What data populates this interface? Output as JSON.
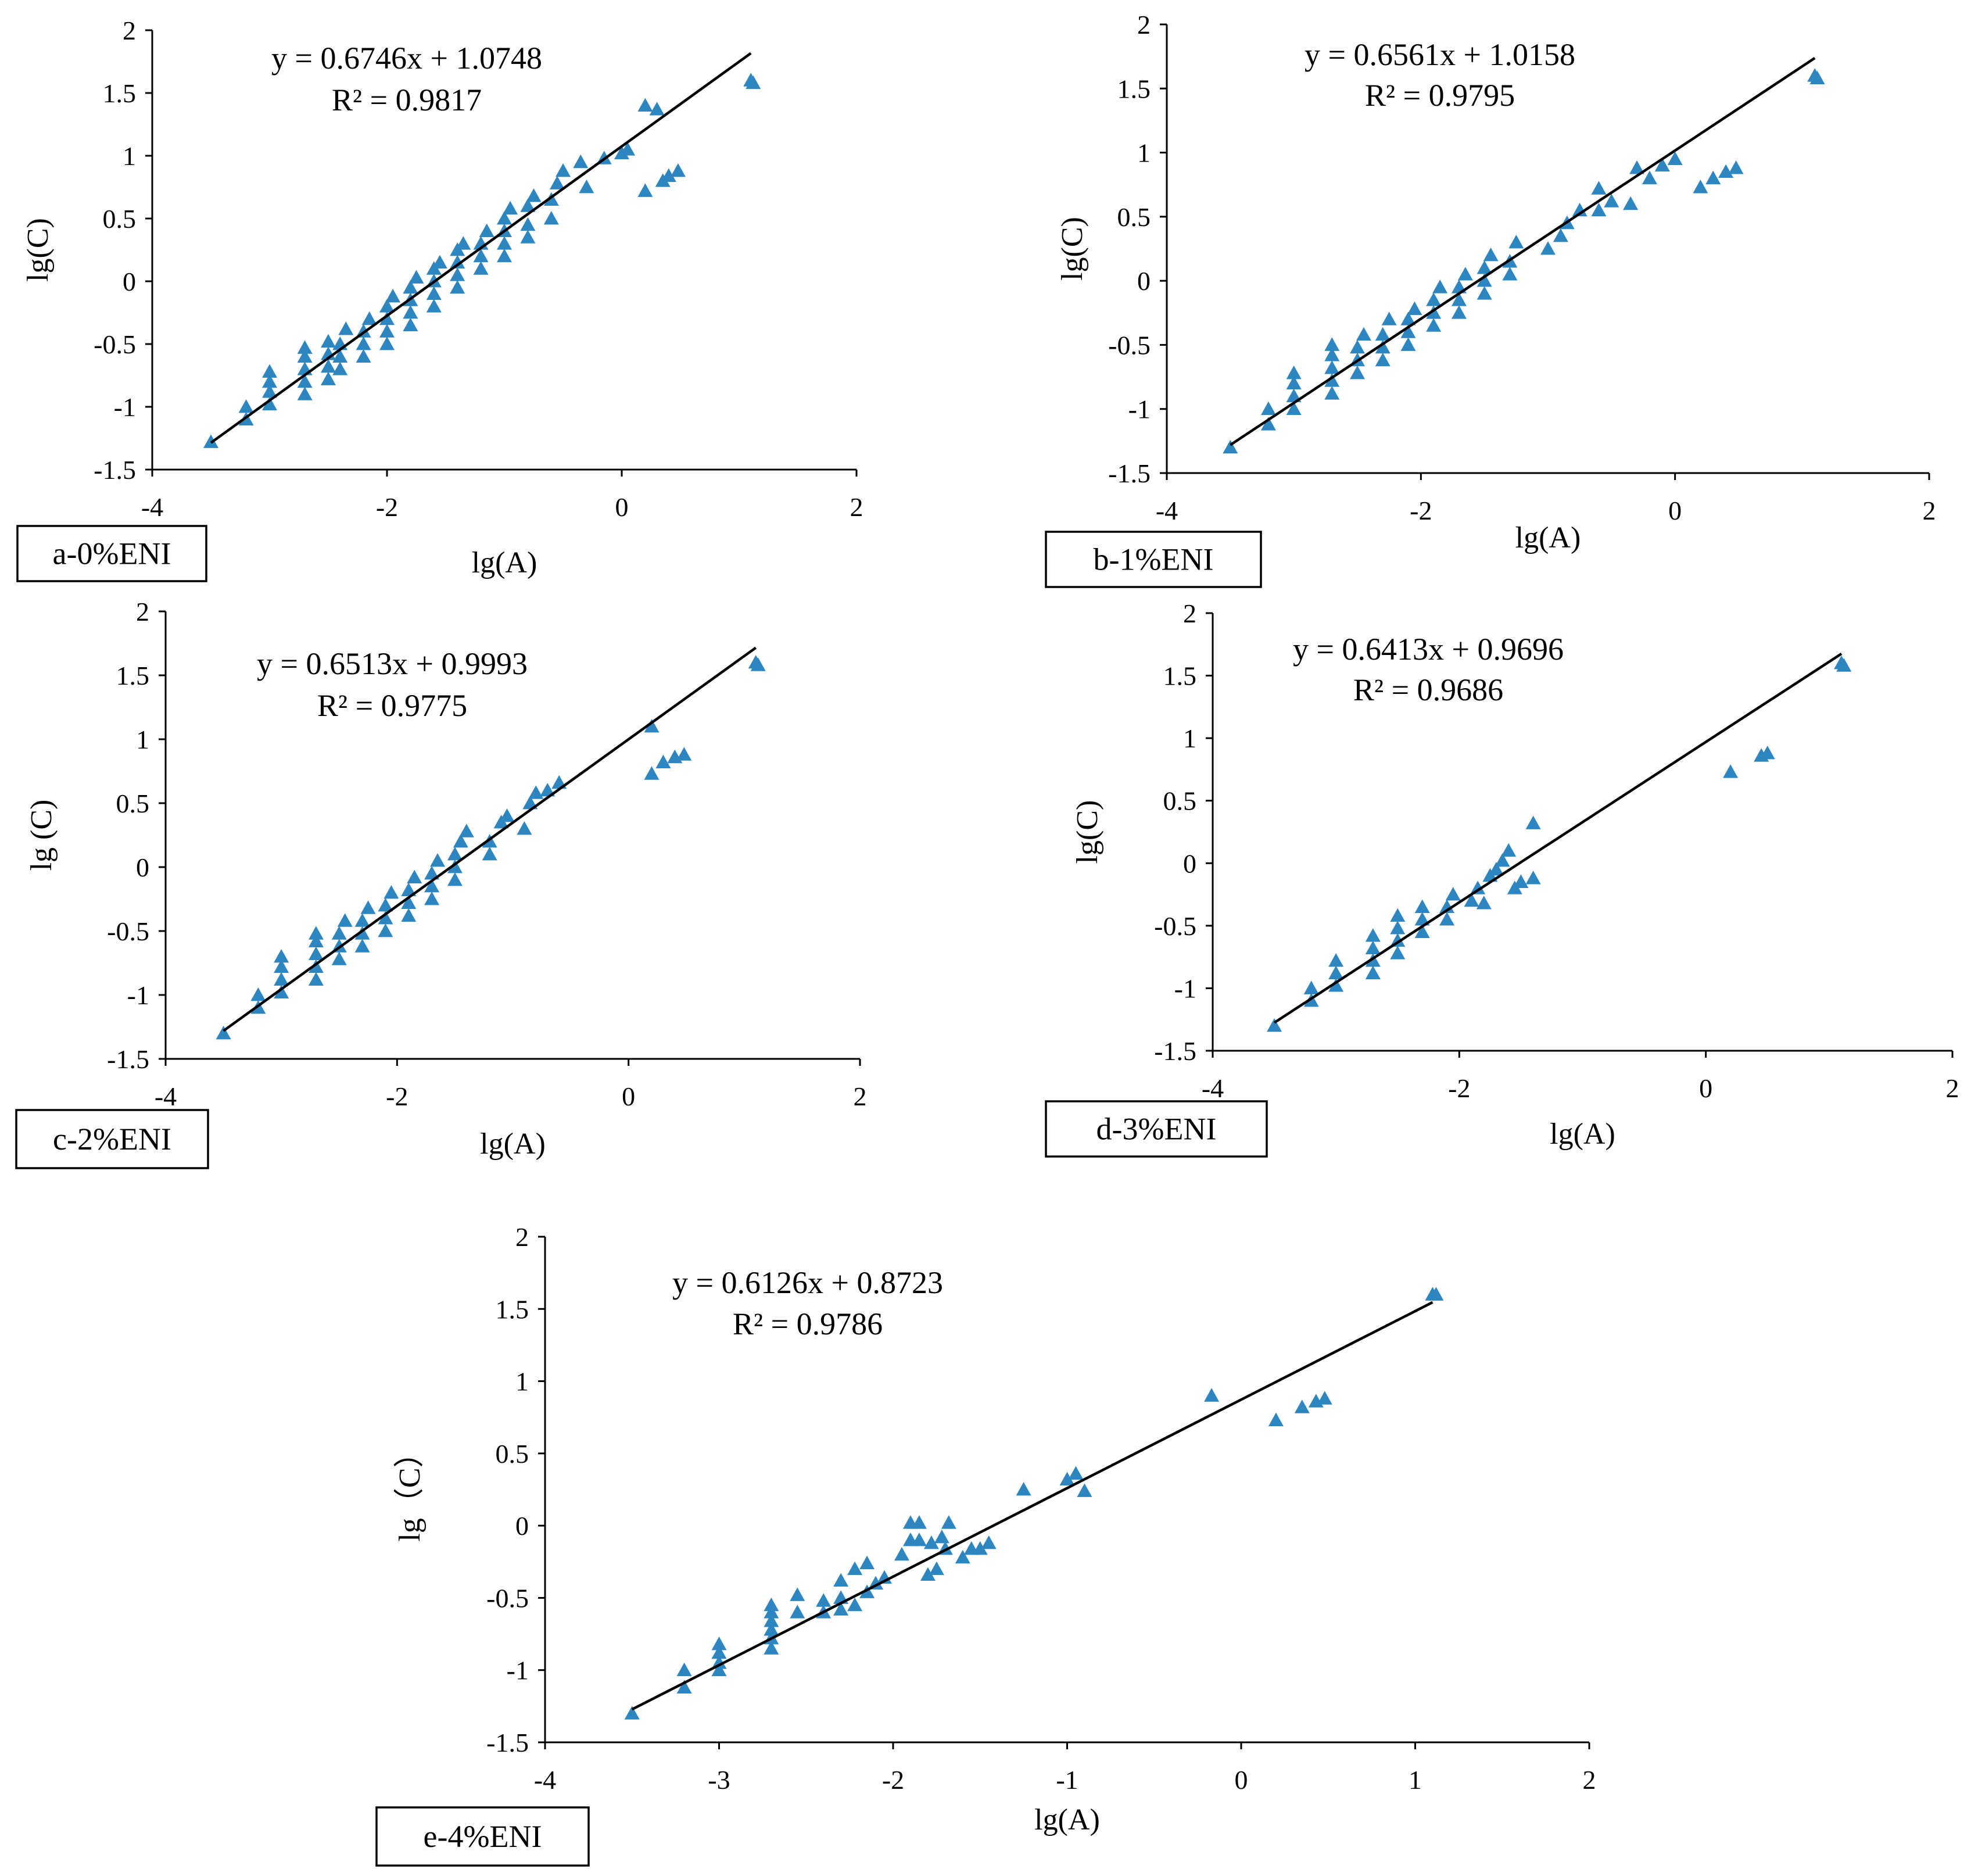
{
  "colors": {
    "marker": "#2E86C1",
    "line": "#000000",
    "axis": "#000000"
  },
  "chart_data": [
    {
      "type": "scatter",
      "panel_label": "a-0%ENI",
      "equation": "y = 0.6746x + 1.0748",
      "r_squared": "R² = 0.9817",
      "slope": 0.6746,
      "intercept": 1.0748,
      "fit_range": [
        -3.5,
        1.1
      ],
      "xlabel": "lg(A)",
      "ylabel": "lg(C)",
      "xlim": [
        -4,
        2
      ],
      "ylim": [
        -1.5,
        2
      ],
      "xticks": [
        "-4",
        "-2",
        "0",
        "2"
      ],
      "yticks": [
        "-1.5",
        "-1",
        "-0.5",
        "0",
        "0.5",
        "1",
        "1.5",
        "2"
      ],
      "marker": "triangle",
      "points": [
        [
          -3.5,
          -1.28
        ],
        [
          -3.2,
          -1.1
        ],
        [
          -3.2,
          -1.0
        ],
        [
          -3.0,
          -0.98
        ],
        [
          -3.0,
          -0.88
        ],
        [
          -3.0,
          -0.8
        ],
        [
          -3.0,
          -0.72
        ],
        [
          -2.7,
          -0.9
        ],
        [
          -2.7,
          -0.8
        ],
        [
          -2.7,
          -0.7
        ],
        [
          -2.7,
          -0.6
        ],
        [
          -2.7,
          -0.53
        ],
        [
          -2.5,
          -0.78
        ],
        [
          -2.5,
          -0.68
        ],
        [
          -2.5,
          -0.58
        ],
        [
          -2.5,
          -0.48
        ],
        [
          -2.4,
          -0.7
        ],
        [
          -2.4,
          -0.6
        ],
        [
          -2.4,
          -0.5
        ],
        [
          -2.35,
          -0.38
        ],
        [
          -2.2,
          -0.6
        ],
        [
          -2.2,
          -0.5
        ],
        [
          -2.2,
          -0.4
        ],
        [
          -2.15,
          -0.3
        ],
        [
          -2.0,
          -0.5
        ],
        [
          -2.0,
          -0.4
        ],
        [
          -2.0,
          -0.3
        ],
        [
          -2.0,
          -0.2
        ],
        [
          -1.95,
          -0.12
        ],
        [
          -1.8,
          -0.35
        ],
        [
          -1.8,
          -0.25
        ],
        [
          -1.8,
          -0.15
        ],
        [
          -1.8,
          -0.05
        ],
        [
          -1.75,
          0.03
        ],
        [
          -1.6,
          -0.2
        ],
        [
          -1.6,
          -0.1
        ],
        [
          -1.6,
          0.0
        ],
        [
          -1.6,
          0.1
        ],
        [
          -1.55,
          0.15
        ],
        [
          -1.4,
          -0.05
        ],
        [
          -1.4,
          0.05
        ],
        [
          -1.4,
          0.15
        ],
        [
          -1.4,
          0.25
        ],
        [
          -1.35,
          0.3
        ],
        [
          -1.2,
          0.1
        ],
        [
          -1.2,
          0.2
        ],
        [
          -1.2,
          0.3
        ],
        [
          -1.15,
          0.4
        ],
        [
          -1.0,
          0.2
        ],
        [
          -1.0,
          0.3
        ],
        [
          -1.0,
          0.4
        ],
        [
          -1.0,
          0.5
        ],
        [
          -0.95,
          0.58
        ],
        [
          -0.8,
          0.35
        ],
        [
          -0.8,
          0.45
        ],
        [
          -0.8,
          0.6
        ],
        [
          -0.75,
          0.68
        ],
        [
          -0.6,
          0.5
        ],
        [
          -0.6,
          0.65
        ],
        [
          -0.55,
          0.78
        ],
        [
          -0.5,
          0.88
        ],
        [
          -0.35,
          0.95
        ],
        [
          -0.3,
          0.75
        ],
        [
          -0.15,
          0.98
        ],
        [
          0.0,
          1.02
        ],
        [
          0.05,
          1.05
        ],
        [
          0.2,
          0.72
        ],
        [
          0.35,
          0.8
        ],
        [
          0.4,
          0.84
        ],
        [
          0.48,
          0.88
        ],
        [
          0.2,
          1.4
        ],
        [
          0.3,
          1.37
        ],
        [
          1.1,
          1.6
        ],
        [
          1.12,
          1.58
        ]
      ]
    },
    {
      "type": "scatter",
      "panel_label": "b-1%ENI",
      "equation": "y = 0.6561x + 1.0158",
      "r_squared": "R² = 0.9795",
      "slope": 0.6561,
      "intercept": 1.0158,
      "fit_range": [
        -3.5,
        1.1
      ],
      "xlabel": "lg(A)",
      "ylabel": "lg(C)",
      "xlim": [
        -4,
        2
      ],
      "ylim": [
        -1.5,
        2
      ],
      "xticks": [
        "-4",
        "-2",
        "0",
        "2"
      ],
      "yticks": [
        "-1.5",
        "-1",
        "-0.5",
        "0",
        "0.5",
        "1",
        "1.5",
        "2"
      ],
      "marker": "triangle",
      "points": [
        [
          -3.5,
          -1.3
        ],
        [
          -3.2,
          -1.12
        ],
        [
          -3.2,
          -1.0
        ],
        [
          -3.0,
          -1.0
        ],
        [
          -3.0,
          -0.9
        ],
        [
          -3.0,
          -0.8
        ],
        [
          -3.0,
          -0.72
        ],
        [
          -2.7,
          -0.88
        ],
        [
          -2.7,
          -0.78
        ],
        [
          -2.7,
          -0.68
        ],
        [
          -2.7,
          -0.58
        ],
        [
          -2.7,
          -0.5
        ],
        [
          -2.5,
          -0.72
        ],
        [
          -2.5,
          -0.62
        ],
        [
          -2.5,
          -0.52
        ],
        [
          -2.45,
          -0.42
        ],
        [
          -2.3,
          -0.62
        ],
        [
          -2.3,
          -0.52
        ],
        [
          -2.3,
          -0.42
        ],
        [
          -2.25,
          -0.3
        ],
        [
          -2.1,
          -0.5
        ],
        [
          -2.1,
          -0.4
        ],
        [
          -2.1,
          -0.3
        ],
        [
          -2.05,
          -0.22
        ],
        [
          -1.9,
          -0.35
        ],
        [
          -1.9,
          -0.25
        ],
        [
          -1.9,
          -0.15
        ],
        [
          -1.85,
          -0.05
        ],
        [
          -1.7,
          -0.25
        ],
        [
          -1.7,
          -0.15
        ],
        [
          -1.7,
          -0.05
        ],
        [
          -1.65,
          0.05
        ],
        [
          -1.5,
          -0.1
        ],
        [
          -1.5,
          0.0
        ],
        [
          -1.5,
          0.1
        ],
        [
          -1.45,
          0.2
        ],
        [
          -1.3,
          0.05
        ],
        [
          -1.3,
          0.15
        ],
        [
          -1.25,
          0.3
        ],
        [
          -1.0,
          0.25
        ],
        [
          -0.9,
          0.35
        ],
        [
          -0.85,
          0.45
        ],
        [
          -0.75,
          0.55
        ],
        [
          -0.6,
          0.55
        ],
        [
          -0.6,
          0.72
        ],
        [
          -0.5,
          0.62
        ],
        [
          -0.35,
          0.6
        ],
        [
          -0.3,
          0.88
        ],
        [
          -0.2,
          0.8
        ],
        [
          -0.1,
          0.9
        ],
        [
          0.0,
          0.95
        ],
        [
          0.2,
          0.73
        ],
        [
          0.3,
          0.8
        ],
        [
          0.4,
          0.85
        ],
        [
          0.48,
          0.88
        ],
        [
          1.1,
          1.6
        ],
        [
          1.12,
          1.58
        ]
      ]
    },
    {
      "type": "scatter",
      "panel_label": "c-2%ENI",
      "equation": "y = 0.6513x + 0.9993",
      "r_squared": "R² = 0.9775",
      "slope": 0.6513,
      "intercept": 0.9993,
      "fit_range": [
        -3.5,
        1.1
      ],
      "xlabel": "lg(A)",
      "ylabel": "lg (C)",
      "xlim": [
        -4,
        2
      ],
      "ylim": [
        -1.5,
        2
      ],
      "xticks": [
        "-4",
        "-2",
        "0",
        "2"
      ],
      "yticks": [
        "-1.5",
        "-1",
        "-0.5",
        "0",
        "0.5",
        "1",
        "1.5",
        "2"
      ],
      "marker": "triangle",
      "points": [
        [
          -3.5,
          -1.3
        ],
        [
          -3.2,
          -1.1
        ],
        [
          -3.2,
          -1.0
        ],
        [
          -3.0,
          -0.98
        ],
        [
          -3.0,
          -0.88
        ],
        [
          -3.0,
          -0.78
        ],
        [
          -3.0,
          -0.7
        ],
        [
          -2.7,
          -0.88
        ],
        [
          -2.7,
          -0.78
        ],
        [
          -2.7,
          -0.68
        ],
        [
          -2.7,
          -0.58
        ],
        [
          -2.7,
          -0.52
        ],
        [
          -2.5,
          -0.72
        ],
        [
          -2.5,
          -0.62
        ],
        [
          -2.5,
          -0.52
        ],
        [
          -2.45,
          -0.42
        ],
        [
          -2.3,
          -0.62
        ],
        [
          -2.3,
          -0.52
        ],
        [
          -2.3,
          -0.42
        ],
        [
          -2.25,
          -0.32
        ],
        [
          -2.1,
          -0.5
        ],
        [
          -2.1,
          -0.4
        ],
        [
          -2.1,
          -0.3
        ],
        [
          -2.05,
          -0.2
        ],
        [
          -1.9,
          -0.38
        ],
        [
          -1.9,
          -0.28
        ],
        [
          -1.9,
          -0.18
        ],
        [
          -1.85,
          -0.08
        ],
        [
          -1.7,
          -0.25
        ],
        [
          -1.7,
          -0.15
        ],
        [
          -1.7,
          -0.05
        ],
        [
          -1.65,
          0.05
        ],
        [
          -1.5,
          -0.1
        ],
        [
          -1.5,
          0.0
        ],
        [
          -1.5,
          0.1
        ],
        [
          -1.45,
          0.2
        ],
        [
          -1.4,
          0.28
        ],
        [
          -1.2,
          0.1
        ],
        [
          -1.2,
          0.2
        ],
        [
          -1.1,
          0.35
        ],
        [
          -1.05,
          0.4
        ],
        [
          -0.9,
          0.3
        ],
        [
          -0.85,
          0.5
        ],
        [
          -0.8,
          0.58
        ],
        [
          -0.7,
          0.6
        ],
        [
          -0.6,
          0.66
        ],
        [
          0.2,
          0.73
        ],
        [
          0.2,
          1.1
        ],
        [
          0.3,
          0.82
        ],
        [
          0.4,
          0.86
        ],
        [
          0.48,
          0.88
        ],
        [
          1.1,
          1.6
        ],
        [
          1.12,
          1.58
        ]
      ]
    },
    {
      "type": "scatter",
      "panel_label": "d-3%ENI",
      "equation": "y = 0.6413x + 0.9696",
      "r_squared": "R² = 0.9686",
      "slope": 0.6413,
      "intercept": 0.9696,
      "fit_range": [
        -3.5,
        1.1
      ],
      "xlabel": "lg(A)",
      "ylabel": "lg(C)",
      "xlim": [
        -4,
        2
      ],
      "ylim": [
        -1.5,
        2
      ],
      "xticks": [
        "-4",
        "-2",
        "0",
        "2"
      ],
      "yticks": [
        "-1.5",
        "-1",
        "-0.5",
        "0",
        "0.5",
        "1",
        "1.5",
        "2"
      ],
      "marker": "triangle",
      "points": [
        [
          -3.5,
          -1.3
        ],
        [
          -3.2,
          -1.1
        ],
        [
          -3.2,
          -1.0
        ],
        [
          -3.0,
          -0.98
        ],
        [
          -3.0,
          -0.88
        ],
        [
          -3.0,
          -0.78
        ],
        [
          -2.7,
          -0.88
        ],
        [
          -2.7,
          -0.78
        ],
        [
          -2.7,
          -0.68
        ],
        [
          -2.7,
          -0.58
        ],
        [
          -2.5,
          -0.72
        ],
        [
          -2.5,
          -0.62
        ],
        [
          -2.5,
          -0.52
        ],
        [
          -2.5,
          -0.42
        ],
        [
          -2.3,
          -0.55
        ],
        [
          -2.3,
          -0.45
        ],
        [
          -2.3,
          -0.35
        ],
        [
          -2.1,
          -0.45
        ],
        [
          -2.1,
          -0.35
        ],
        [
          -2.05,
          -0.25
        ],
        [
          -1.9,
          -0.3
        ],
        [
          -1.85,
          -0.2
        ],
        [
          -1.8,
          -0.32
        ],
        [
          -1.75,
          -0.1
        ],
        [
          -1.7,
          -0.05
        ],
        [
          -1.65,
          0.02
        ],
        [
          -1.6,
          0.1
        ],
        [
          -1.55,
          -0.2
        ],
        [
          -1.5,
          -0.15
        ],
        [
          -1.4,
          -0.12
        ],
        [
          -1.4,
          0.32
        ],
        [
          0.2,
          0.73
        ],
        [
          0.45,
          0.86
        ],
        [
          0.5,
          0.88
        ],
        [
          1.1,
          1.6
        ],
        [
          1.12,
          1.58
        ]
      ]
    },
    {
      "type": "scatter",
      "panel_label": "e-4%ENI",
      "equation": "y = 0.6126x + 0.8723",
      "r_squared": "R² = 0.9786",
      "slope": 0.6126,
      "intercept": 0.8723,
      "fit_range": [
        -3.5,
        1.1
      ],
      "xlabel": "lg(A)",
      "ylabel": "lg（C）",
      "xlim": [
        -4,
        2
      ],
      "ylim": [
        -1.5,
        2
      ],
      "xticks": [
        "-4",
        "-3",
        "-2",
        "-1",
        "0",
        "1",
        "2"
      ],
      "yticks": [
        "-1.5",
        "-1",
        "-0.5",
        "0",
        "0.5",
        "1",
        "1.5",
        "2"
      ],
      "marker": "triangle",
      "points": [
        [
          -3.5,
          -1.3
        ],
        [
          -3.2,
          -1.12
        ],
        [
          -3.2,
          -1.0
        ],
        [
          -3.0,
          -1.0
        ],
        [
          -3.0,
          -0.95
        ],
        [
          -3.0,
          -0.88
        ],
        [
          -3.0,
          -0.82
        ],
        [
          -2.7,
          -0.85
        ],
        [
          -2.7,
          -0.78
        ],
        [
          -2.7,
          -0.72
        ],
        [
          -2.7,
          -0.66
        ],
        [
          -2.7,
          -0.6
        ],
        [
          -2.7,
          -0.55
        ],
        [
          -2.55,
          -0.6
        ],
        [
          -2.55,
          -0.48
        ],
        [
          -2.4,
          -0.6
        ],
        [
          -2.4,
          -0.52
        ],
        [
          -2.3,
          -0.58
        ],
        [
          -2.3,
          -0.5
        ],
        [
          -2.3,
          -0.38
        ],
        [
          -2.22,
          -0.55
        ],
        [
          -2.22,
          -0.3
        ],
        [
          -2.15,
          -0.46
        ],
        [
          -2.15,
          -0.26
        ],
        [
          -2.1,
          -0.4
        ],
        [
          -2.05,
          -0.36
        ],
        [
          -1.95,
          -0.2
        ],
        [
          -1.9,
          -0.1
        ],
        [
          -1.9,
          0.02
        ],
        [
          -1.85,
          -0.1
        ],
        [
          -1.85,
          0.02
        ],
        [
          -1.8,
          -0.34
        ],
        [
          -1.78,
          -0.12
        ],
        [
          -1.75,
          -0.3
        ],
        [
          -1.72,
          -0.08
        ],
        [
          -1.7,
          -0.16
        ],
        [
          -1.68,
          0.02
        ],
        [
          -1.6,
          -0.22
        ],
        [
          -1.55,
          -0.16
        ],
        [
          -1.5,
          -0.16
        ],
        [
          -1.45,
          -0.12
        ],
        [
          -1.25,
          0.25
        ],
        [
          -1.0,
          0.32
        ],
        [
          -0.95,
          0.36
        ],
        [
          -0.9,
          0.24
        ],
        [
          -0.17,
          0.9
        ],
        [
          0.2,
          0.73
        ],
        [
          0.35,
          0.82
        ],
        [
          0.43,
          0.86
        ],
        [
          0.48,
          0.88
        ],
        [
          1.1,
          1.6
        ],
        [
          1.12,
          1.6
        ]
      ]
    }
  ]
}
